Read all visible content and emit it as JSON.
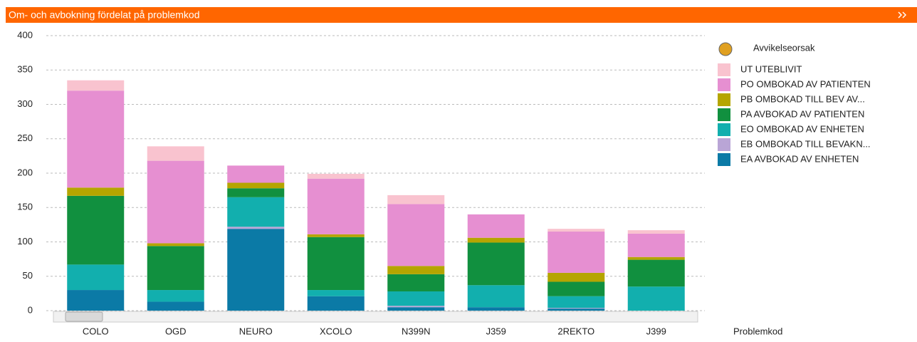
{
  "chart_data": {
    "type": "stacked_bar",
    "title": "Om- och avbokning fördelat på problemkod",
    "x_axis_label": "Problemkod",
    "legend_title": "Avvikelseorsak",
    "categories": [
      "COLO",
      "OGD",
      "NEURO",
      "XCOLO",
      "N399N",
      "J359",
      "2REKTO",
      "J399"
    ],
    "series": [
      {
        "name": "EA AVBOKAD AV ENHETEN",
        "color": "#0b7aa6",
        "values": [
          30,
          13,
          119,
          21,
          5,
          5,
          3,
          0
        ]
      },
      {
        "name": "EB OMBOKAD TILL BEVAKN...",
        "color": "#b9a5d6",
        "values": [
          0,
          0,
          3,
          0,
          2,
          0,
          1,
          0
        ]
      },
      {
        "name": "EO OMBOKAD AV ENHETEN",
        "color": "#12afae",
        "values": [
          37,
          17,
          43,
          9,
          21,
          32,
          17,
          35
        ]
      },
      {
        "name": "PA AVBOKAD AV PATIENTEN",
        "color": "#11903f",
        "values": [
          100,
          64,
          13,
          77,
          25,
          62,
          21,
          39
        ]
      },
      {
        "name": "PB OMBOKAD TILL BEV AV...",
        "color": "#b5a500",
        "values": [
          12,
          4,
          8,
          4,
          12,
          7,
          13,
          4
        ]
      },
      {
        "name": "PO OMBOKAD AV PATIENTEN",
        "color": "#e68fd1",
        "values": [
          141,
          120,
          25,
          81,
          90,
          34,
          60,
          34
        ]
      },
      {
        "name": "UT UTEBLIVIT",
        "color": "#f9c3cf",
        "values": [
          15,
          21,
          0,
          7,
          13,
          0,
          4,
          5
        ]
      }
    ],
    "ylim": [
      0,
      400
    ],
    "yticks": [
      0,
      50,
      100,
      150,
      200,
      250,
      300,
      350,
      400
    ],
    "grid": true,
    "legend": "right"
  }
}
